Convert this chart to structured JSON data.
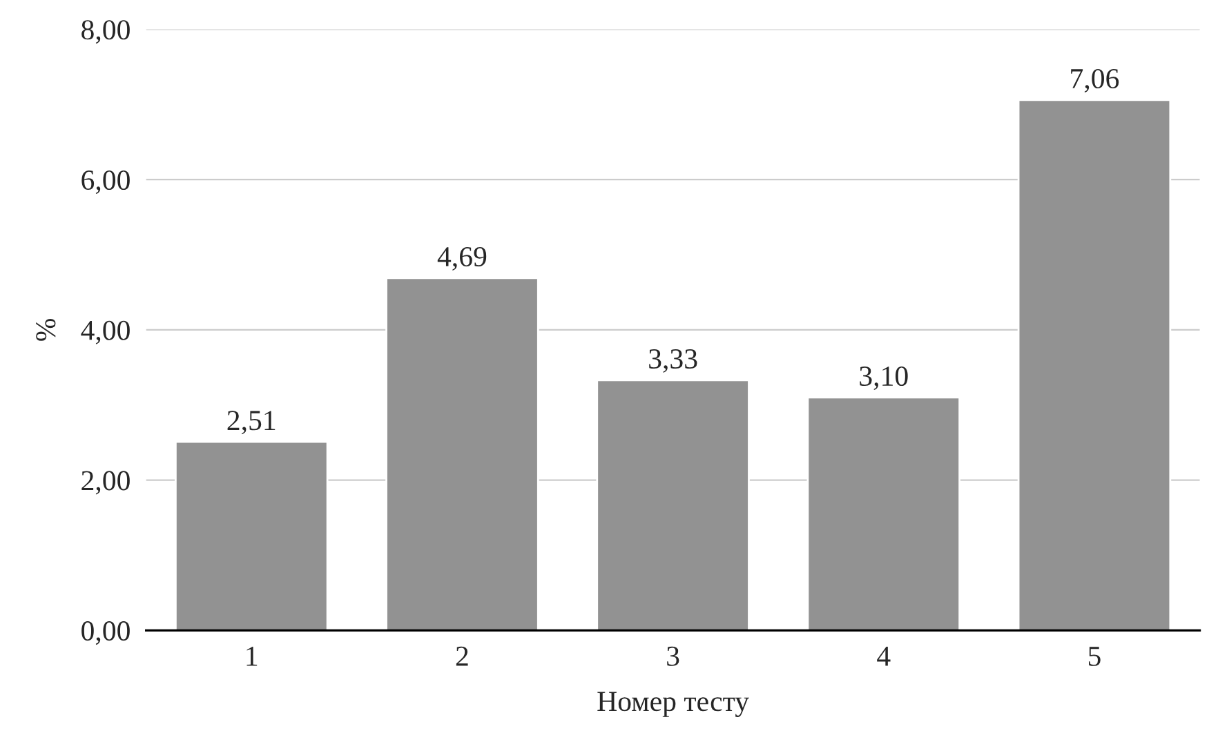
{
  "chart_data": {
    "type": "bar",
    "xlabel": "Номер тесту",
    "ylabel": "%",
    "categories": [
      "1",
      "2",
      "3",
      "4",
      "5"
    ],
    "values": [
      2.51,
      4.69,
      3.33,
      3.1,
      7.06
    ],
    "value_labels": [
      "2,51",
      "4,69",
      "3,33",
      "3,10",
      "7,06"
    ],
    "color": "#929292",
    "ylim": [
      0,
      8
    ],
    "yticks": [
      {
        "value": 0,
        "label": "0,00"
      },
      {
        "value": 2,
        "label": "2,00"
      },
      {
        "value": 4,
        "label": "4,00"
      },
      {
        "value": 6,
        "label": "6,00"
      },
      {
        "value": 8,
        "label": "8,00"
      }
    ],
    "grid": "y",
    "legend": false
  }
}
